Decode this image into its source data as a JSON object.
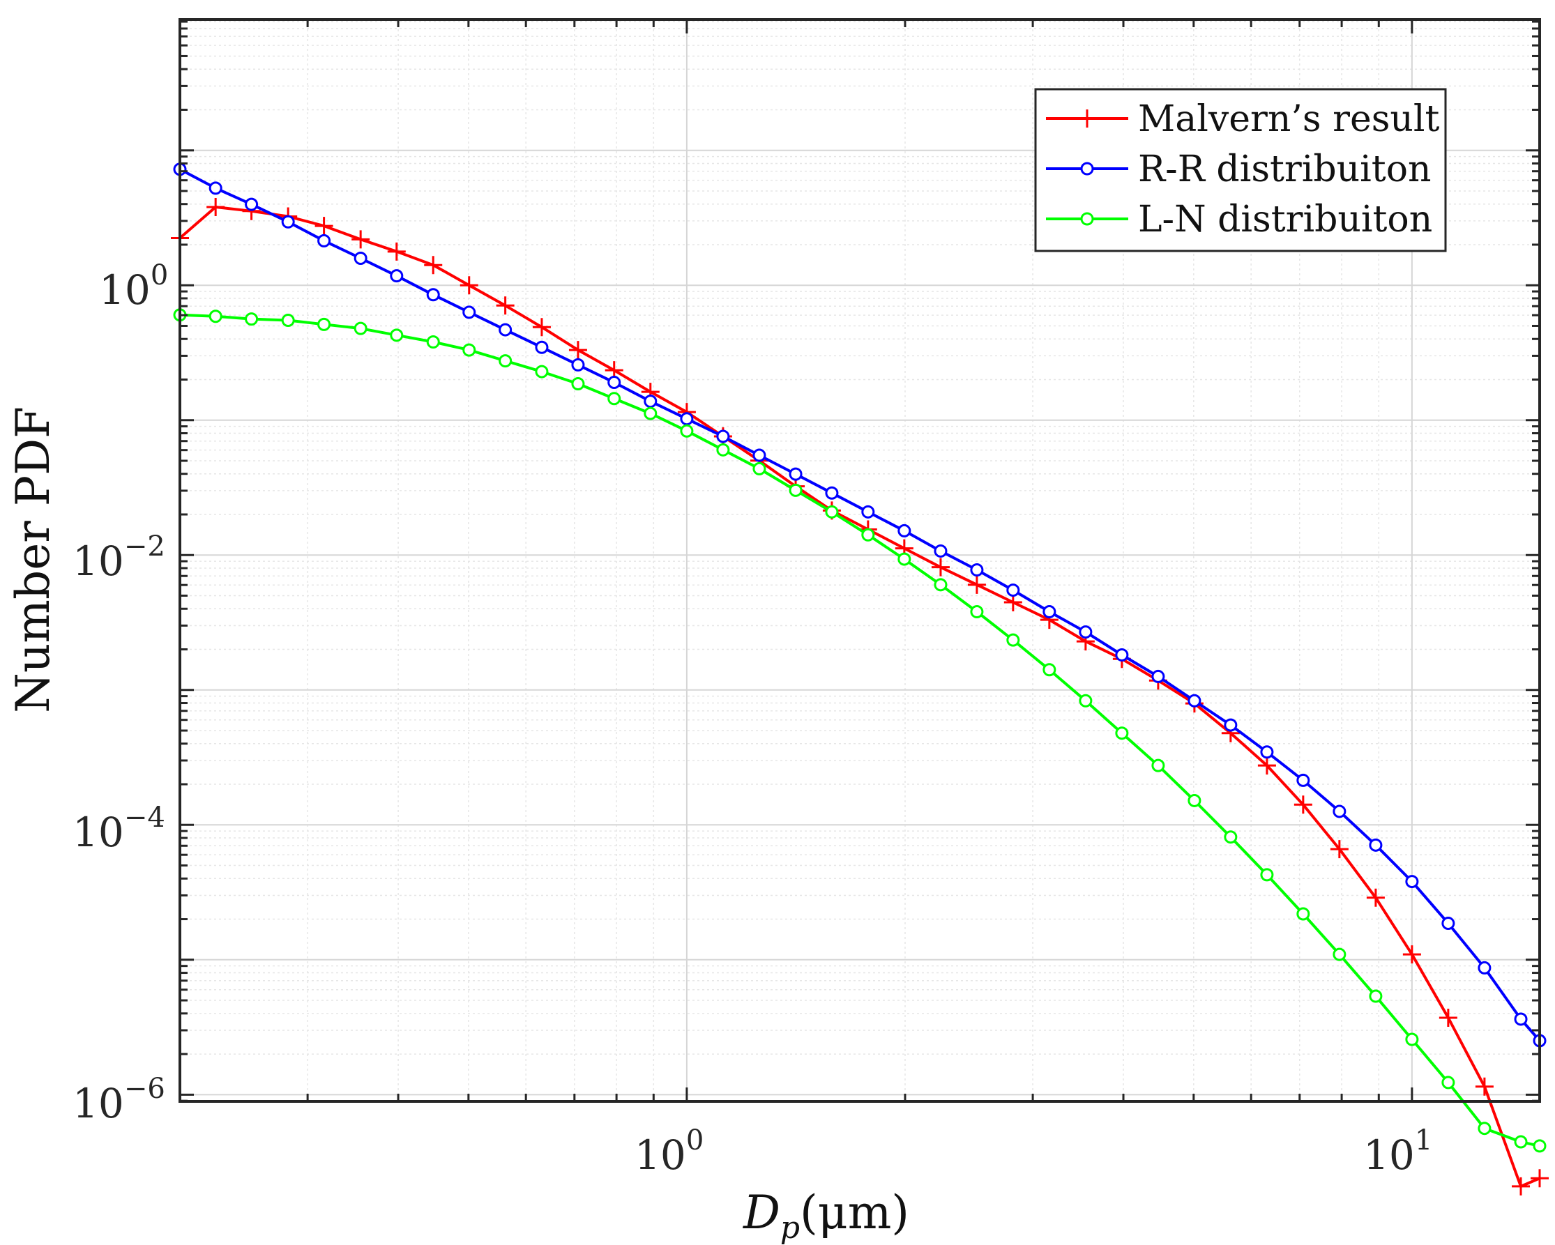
{
  "chart_data": {
    "type": "line",
    "x_scale": "log",
    "y_scale": "log",
    "xlim": [
      0.2,
      15
    ],
    "ylim_exponent": [
      -6.05,
      1.97
    ],
    "grid": true,
    "minor_grid": true,
    "legend_location": "top-right",
    "xlabel": {
      "symbol": "D",
      "subscript": "p",
      "unit": "(μm)"
    },
    "ylabel": "Number PDF",
    "x_ticks": [
      {
        "value": 1,
        "base": "10",
        "exp": "0"
      },
      {
        "value": 10,
        "base": "10",
        "exp": "1"
      }
    ],
    "y_ticks": [
      {
        "value": 0,
        "base": "10",
        "exp": "0"
      },
      {
        "value": -2,
        "base": "10",
        "exp": "−2"
      },
      {
        "value": -4,
        "base": "10",
        "exp": "−4"
      },
      {
        "value": -6,
        "base": "10",
        "exp": "−6"
      }
    ],
    "x": [
      0.2,
      0.224,
      0.251,
      0.282,
      0.316,
      0.355,
      0.398,
      0.447,
      0.501,
      0.562,
      0.631,
      0.708,
      0.794,
      0.891,
      1.0,
      1.122,
      1.259,
      1.413,
      1.585,
      1.778,
      1.995,
      2.239,
      2.512,
      2.818,
      3.162,
      3.548,
      3.981,
      4.467,
      5.012,
      5.623,
      6.31,
      7.079,
      7.943,
      8.913,
      10.0,
      11.22,
      12.59,
      14.13,
      15.0
    ],
    "series": [
      {
        "name": "Malvern’s result",
        "color": "#ff0000",
        "marker": "plus",
        "y_log10": [
          0.35,
          0.58,
          0.55,
          0.51,
          0.44,
          0.34,
          0.25,
          0.15,
          0.0,
          -0.15,
          -0.31,
          -0.48,
          -0.63,
          -0.79,
          -0.94,
          -1.12,
          -1.3,
          -1.49,
          -1.67,
          -1.81,
          -1.95,
          -2.09,
          -2.22,
          -2.35,
          -2.48,
          -2.64,
          -2.77,
          -2.93,
          -3.1,
          -3.32,
          -3.56,
          -3.85,
          -4.18,
          -4.54,
          -4.96,
          -5.43,
          -5.94,
          -6.68,
          -6.62
        ]
      },
      {
        "name": "R-R distribuiton",
        "color": "#0000ff",
        "marker": "circle",
        "y_log10": [
          0.86,
          0.72,
          0.6,
          0.47,
          0.33,
          0.2,
          0.07,
          -0.07,
          -0.2,
          -0.33,
          -0.46,
          -0.59,
          -0.72,
          -0.86,
          -0.99,
          -1.12,
          -1.26,
          -1.4,
          -1.54,
          -1.68,
          -1.82,
          -1.97,
          -2.11,
          -2.26,
          -2.42,
          -2.57,
          -2.74,
          -2.9,
          -3.08,
          -3.26,
          -3.46,
          -3.67,
          -3.9,
          -4.15,
          -4.42,
          -4.73,
          -5.06,
          -5.44,
          -5.6
        ]
      },
      {
        "name": "L-N distribuiton",
        "color": "#00ff00",
        "marker": "circle",
        "y_log10": [
          -0.22,
          -0.23,
          -0.25,
          -0.26,
          -0.29,
          -0.32,
          -0.37,
          -0.42,
          -0.48,
          -0.56,
          -0.64,
          -0.73,
          -0.84,
          -0.95,
          -1.08,
          -1.22,
          -1.36,
          -1.52,
          -1.68,
          -1.85,
          -2.03,
          -2.22,
          -2.42,
          -2.63,
          -2.85,
          -3.08,
          -3.32,
          -3.56,
          -3.82,
          -4.09,
          -4.37,
          -4.66,
          -4.96,
          -5.27,
          -5.59,
          -5.91,
          -6.25,
          -6.35,
          -6.38
        ]
      }
    ]
  }
}
